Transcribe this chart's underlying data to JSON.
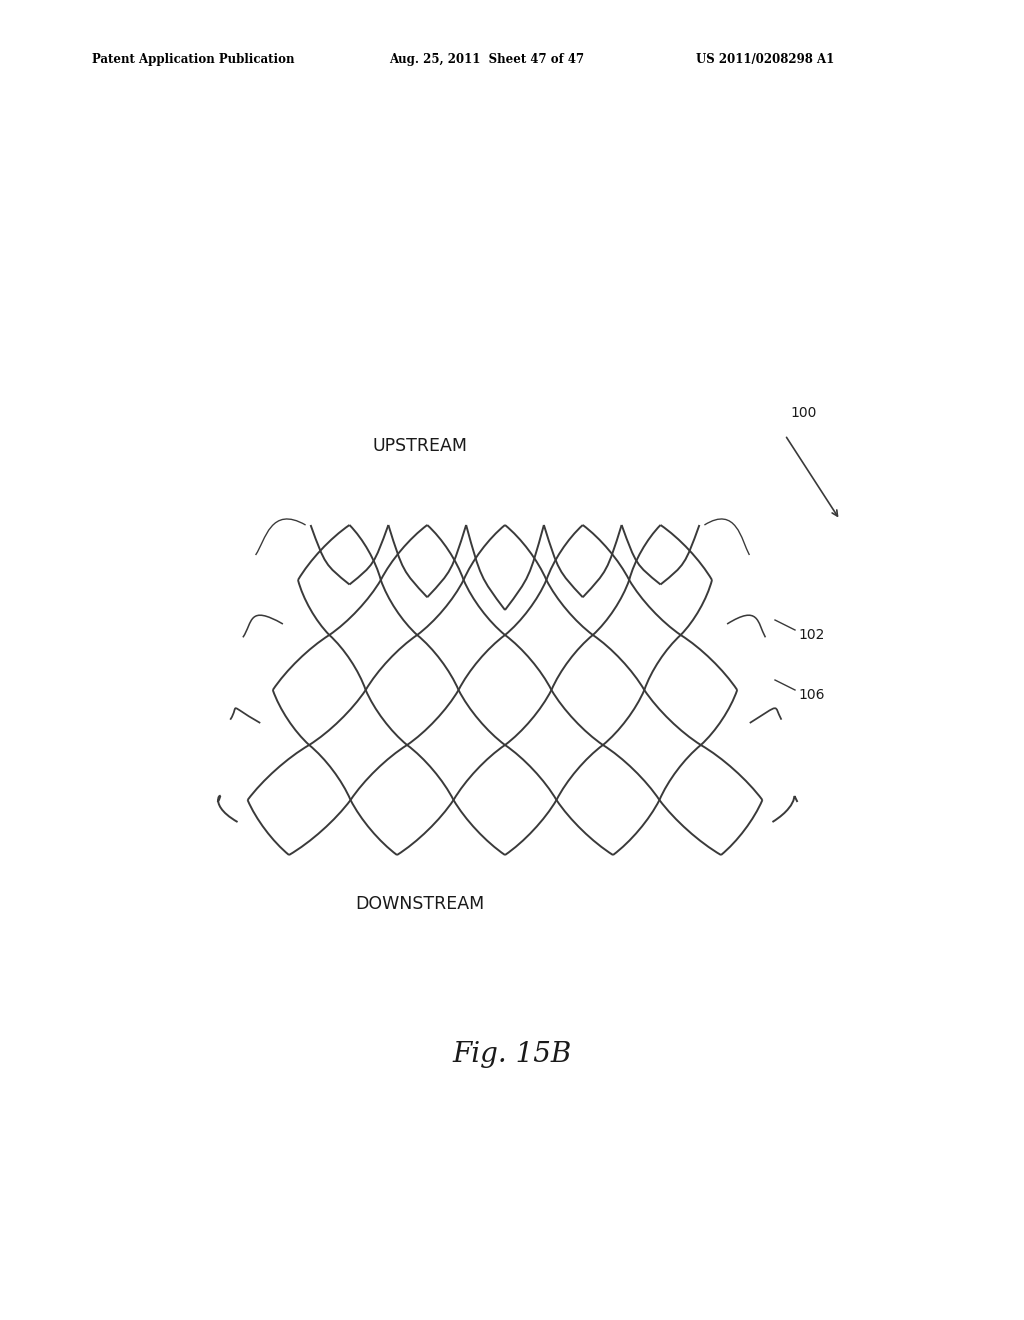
{
  "title": "Fig. 15B",
  "header_left": "Patent Application Publication",
  "header_mid": "Aug. 25, 2011  Sheet 47 of 47",
  "header_right": "US 2011/0208298 A1",
  "label_upstream": "UPSTREAM",
  "label_downstream": "DOWNSTREAM",
  "label_100": "100",
  "label_102": "102",
  "label_106": "106",
  "bg_color": "#ffffff",
  "line_color": "#3a3a3a",
  "text_color": "#1a1a1a",
  "header_color": "#000000"
}
